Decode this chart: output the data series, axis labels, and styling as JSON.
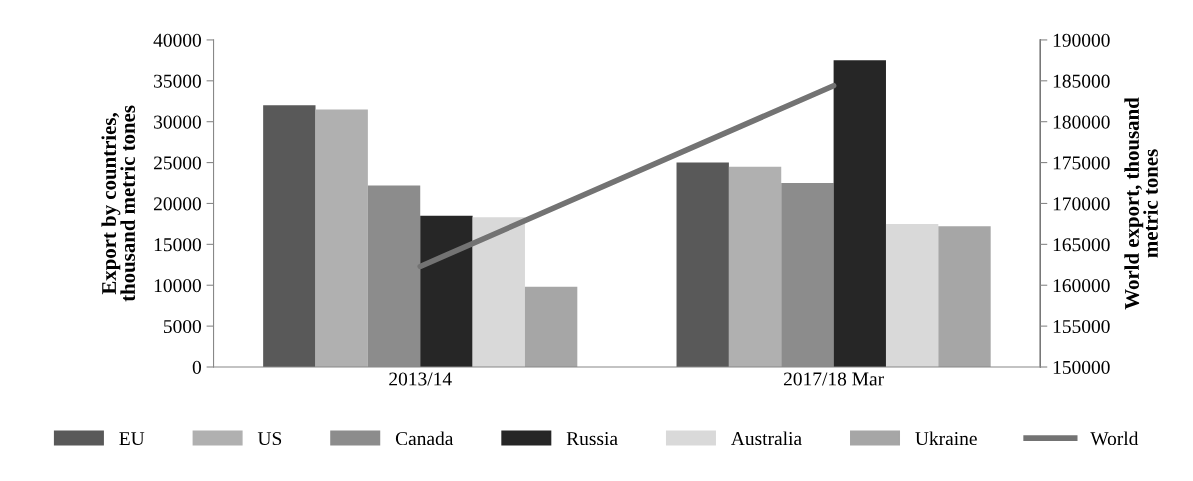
{
  "chart_data": {
    "type": "bar",
    "categories": [
      "2013/14",
      "2017/18 Mar"
    ],
    "ylabel": "Export by countries, thousand metric tones",
    "y2label": "World export, thousand metric tones",
    "series": [
      {
        "name": "EU",
        "color": "#595959",
        "values": [
          32000,
          25000
        ]
      },
      {
        "name": "US",
        "color": "#b0b0b0",
        "values": [
          31500,
          24500
        ]
      },
      {
        "name": "Canada",
        "color": "#8c8c8c",
        "values": [
          22200,
          22500
        ]
      },
      {
        "name": "Russia",
        "color": "#262626",
        "values": [
          18500,
          37500
        ]
      },
      {
        "name": "Australia",
        "color": "#d9d9d9",
        "values": [
          18300,
          17500
        ]
      },
      {
        "name": "Ukraine",
        "color": "#a6a6a6",
        "values": [
          9800,
          17200
        ]
      },
      {
        "name": "World",
        "type": "line",
        "axis": "y2",
        "color": "#737373",
        "values": [
          162300,
          184400
        ]
      }
    ],
    "ylim": [
      0,
      40000
    ],
    "yticks": [
      0,
      5000,
      10000,
      15000,
      20000,
      25000,
      30000,
      35000,
      40000
    ],
    "y2lim": [
      150000,
      190000
    ],
    "y2ticks": [
      150000,
      155000,
      160000,
      165000,
      170000,
      175000,
      180000,
      185000,
      190000
    ],
    "grid": false,
    "legend": "bottom"
  }
}
